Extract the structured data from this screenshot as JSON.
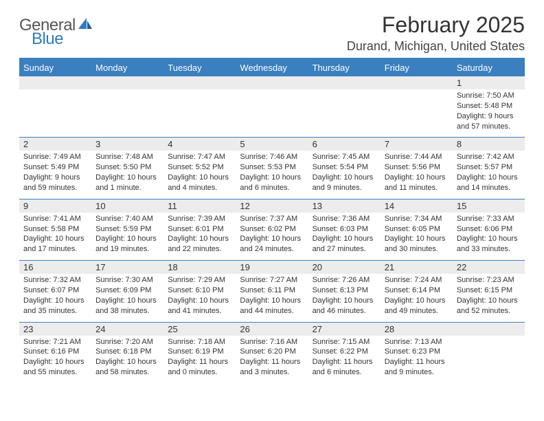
{
  "brand": {
    "general": "General",
    "blue": "Blue"
  },
  "header": {
    "title": "February 2025",
    "location": "Durand, Michigan, United States"
  },
  "colors": {
    "accent": "#3a7fbf",
    "daynum_bg": "#ececec",
    "text": "#333333",
    "background": "#ffffff"
  },
  "dayNames": [
    "Sunday",
    "Monday",
    "Tuesday",
    "Wednesday",
    "Thursday",
    "Friday",
    "Saturday"
  ],
  "weeks": [
    [
      {
        "num": "",
        "sunrise": "",
        "sunset": "",
        "daylight": ""
      },
      {
        "num": "",
        "sunrise": "",
        "sunset": "",
        "daylight": ""
      },
      {
        "num": "",
        "sunrise": "",
        "sunset": "",
        "daylight": ""
      },
      {
        "num": "",
        "sunrise": "",
        "sunset": "",
        "daylight": ""
      },
      {
        "num": "",
        "sunrise": "",
        "sunset": "",
        "daylight": ""
      },
      {
        "num": "",
        "sunrise": "",
        "sunset": "",
        "daylight": ""
      },
      {
        "num": "1",
        "sunrise": "Sunrise: 7:50 AM",
        "sunset": "Sunset: 5:48 PM",
        "daylight": "Daylight: 9 hours and 57 minutes."
      }
    ],
    [
      {
        "num": "2",
        "sunrise": "Sunrise: 7:49 AM",
        "sunset": "Sunset: 5:49 PM",
        "daylight": "Daylight: 9 hours and 59 minutes."
      },
      {
        "num": "3",
        "sunrise": "Sunrise: 7:48 AM",
        "sunset": "Sunset: 5:50 PM",
        "daylight": "Daylight: 10 hours and 1 minute."
      },
      {
        "num": "4",
        "sunrise": "Sunrise: 7:47 AM",
        "sunset": "Sunset: 5:52 PM",
        "daylight": "Daylight: 10 hours and 4 minutes."
      },
      {
        "num": "5",
        "sunrise": "Sunrise: 7:46 AM",
        "sunset": "Sunset: 5:53 PM",
        "daylight": "Daylight: 10 hours and 6 minutes."
      },
      {
        "num": "6",
        "sunrise": "Sunrise: 7:45 AM",
        "sunset": "Sunset: 5:54 PM",
        "daylight": "Daylight: 10 hours and 9 minutes."
      },
      {
        "num": "7",
        "sunrise": "Sunrise: 7:44 AM",
        "sunset": "Sunset: 5:56 PM",
        "daylight": "Daylight: 10 hours and 11 minutes."
      },
      {
        "num": "8",
        "sunrise": "Sunrise: 7:42 AM",
        "sunset": "Sunset: 5:57 PM",
        "daylight": "Daylight: 10 hours and 14 minutes."
      }
    ],
    [
      {
        "num": "9",
        "sunrise": "Sunrise: 7:41 AM",
        "sunset": "Sunset: 5:58 PM",
        "daylight": "Daylight: 10 hours and 17 minutes."
      },
      {
        "num": "10",
        "sunrise": "Sunrise: 7:40 AM",
        "sunset": "Sunset: 5:59 PM",
        "daylight": "Daylight: 10 hours and 19 minutes."
      },
      {
        "num": "11",
        "sunrise": "Sunrise: 7:39 AM",
        "sunset": "Sunset: 6:01 PM",
        "daylight": "Daylight: 10 hours and 22 minutes."
      },
      {
        "num": "12",
        "sunrise": "Sunrise: 7:37 AM",
        "sunset": "Sunset: 6:02 PM",
        "daylight": "Daylight: 10 hours and 24 minutes."
      },
      {
        "num": "13",
        "sunrise": "Sunrise: 7:36 AM",
        "sunset": "Sunset: 6:03 PM",
        "daylight": "Daylight: 10 hours and 27 minutes."
      },
      {
        "num": "14",
        "sunrise": "Sunrise: 7:34 AM",
        "sunset": "Sunset: 6:05 PM",
        "daylight": "Daylight: 10 hours and 30 minutes."
      },
      {
        "num": "15",
        "sunrise": "Sunrise: 7:33 AM",
        "sunset": "Sunset: 6:06 PM",
        "daylight": "Daylight: 10 hours and 33 minutes."
      }
    ],
    [
      {
        "num": "16",
        "sunrise": "Sunrise: 7:32 AM",
        "sunset": "Sunset: 6:07 PM",
        "daylight": "Daylight: 10 hours and 35 minutes."
      },
      {
        "num": "17",
        "sunrise": "Sunrise: 7:30 AM",
        "sunset": "Sunset: 6:09 PM",
        "daylight": "Daylight: 10 hours and 38 minutes."
      },
      {
        "num": "18",
        "sunrise": "Sunrise: 7:29 AM",
        "sunset": "Sunset: 6:10 PM",
        "daylight": "Daylight: 10 hours and 41 minutes."
      },
      {
        "num": "19",
        "sunrise": "Sunrise: 7:27 AM",
        "sunset": "Sunset: 6:11 PM",
        "daylight": "Daylight: 10 hours and 44 minutes."
      },
      {
        "num": "20",
        "sunrise": "Sunrise: 7:26 AM",
        "sunset": "Sunset: 6:13 PM",
        "daylight": "Daylight: 10 hours and 46 minutes."
      },
      {
        "num": "21",
        "sunrise": "Sunrise: 7:24 AM",
        "sunset": "Sunset: 6:14 PM",
        "daylight": "Daylight: 10 hours and 49 minutes."
      },
      {
        "num": "22",
        "sunrise": "Sunrise: 7:23 AM",
        "sunset": "Sunset: 6:15 PM",
        "daylight": "Daylight: 10 hours and 52 minutes."
      }
    ],
    [
      {
        "num": "23",
        "sunrise": "Sunrise: 7:21 AM",
        "sunset": "Sunset: 6:16 PM",
        "daylight": "Daylight: 10 hours and 55 minutes."
      },
      {
        "num": "24",
        "sunrise": "Sunrise: 7:20 AM",
        "sunset": "Sunset: 6:18 PM",
        "daylight": "Daylight: 10 hours and 58 minutes."
      },
      {
        "num": "25",
        "sunrise": "Sunrise: 7:18 AM",
        "sunset": "Sunset: 6:19 PM",
        "daylight": "Daylight: 11 hours and 0 minutes."
      },
      {
        "num": "26",
        "sunrise": "Sunrise: 7:16 AM",
        "sunset": "Sunset: 6:20 PM",
        "daylight": "Daylight: 11 hours and 3 minutes."
      },
      {
        "num": "27",
        "sunrise": "Sunrise: 7:15 AM",
        "sunset": "Sunset: 6:22 PM",
        "daylight": "Daylight: 11 hours and 6 minutes."
      },
      {
        "num": "28",
        "sunrise": "Sunrise: 7:13 AM",
        "sunset": "Sunset: 6:23 PM",
        "daylight": "Daylight: 11 hours and 9 minutes."
      },
      {
        "num": "",
        "sunrise": "",
        "sunset": "",
        "daylight": ""
      }
    ]
  ]
}
